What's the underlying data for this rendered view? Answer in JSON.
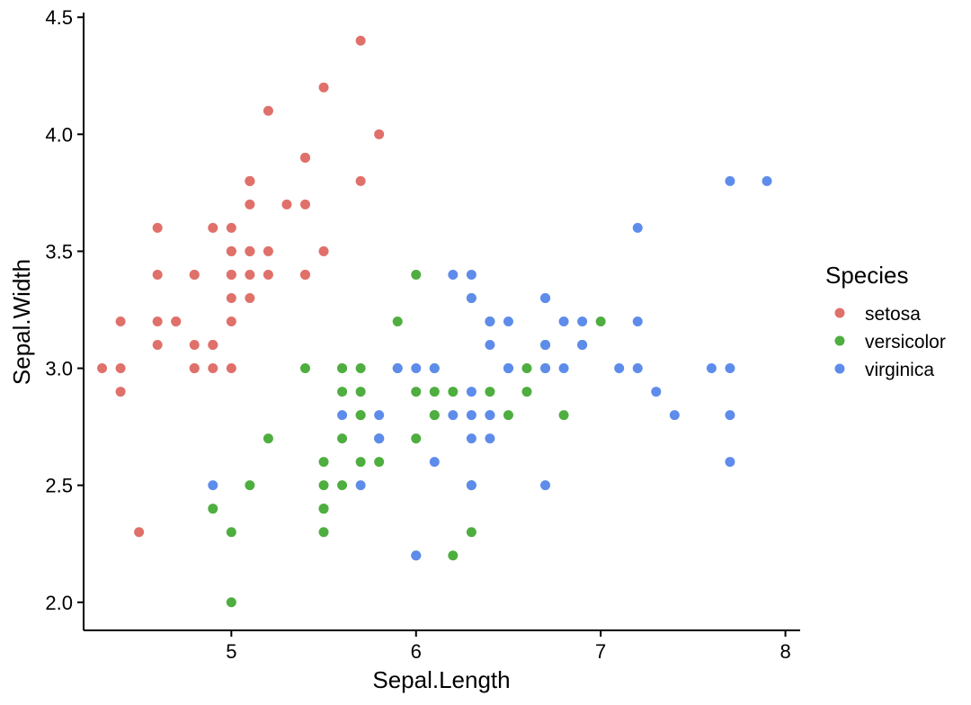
{
  "chart_data": {
    "type": "scatter",
    "xlabel": "Sepal.Length",
    "ylabel": "Sepal.Width",
    "xlim": [
      4.2,
      8.08
    ],
    "ylim": [
      1.88,
      4.52
    ],
    "xticks": [
      5,
      6,
      7,
      8
    ],
    "yticks": [
      2.0,
      2.5,
      3.0,
      3.5,
      4.0,
      4.5
    ],
    "xtick_labels": [
      "5",
      "6",
      "7",
      "8"
    ],
    "ytick_labels": [
      "2.0",
      "2.5",
      "3.0",
      "3.5",
      "4.0",
      "4.5"
    ],
    "grid": false,
    "legend": {
      "title": "Species",
      "placement": "right"
    },
    "series": [
      {
        "name": "setosa",
        "color": "#E0706A",
        "points": [
          [
            5.1,
            3.5
          ],
          [
            4.9,
            3.0
          ],
          [
            4.7,
            3.2
          ],
          [
            4.6,
            3.1
          ],
          [
            5.0,
            3.6
          ],
          [
            5.4,
            3.9
          ],
          [
            4.6,
            3.4
          ],
          [
            5.0,
            3.4
          ],
          [
            4.4,
            2.9
          ],
          [
            4.9,
            3.1
          ],
          [
            5.4,
            3.7
          ],
          [
            4.8,
            3.4
          ],
          [
            4.8,
            3.0
          ],
          [
            4.3,
            3.0
          ],
          [
            5.8,
            4.0
          ],
          [
            5.7,
            4.4
          ],
          [
            5.4,
            3.9
          ],
          [
            5.1,
            3.5
          ],
          [
            5.7,
            3.8
          ],
          [
            5.1,
            3.8
          ],
          [
            5.4,
            3.4
          ],
          [
            5.1,
            3.7
          ],
          [
            4.6,
            3.6
          ],
          [
            5.1,
            3.3
          ],
          [
            4.8,
            3.4
          ],
          [
            5.0,
            3.0
          ],
          [
            5.0,
            3.4
          ],
          [
            5.2,
            3.5
          ],
          [
            5.2,
            3.4
          ],
          [
            4.7,
            3.2
          ],
          [
            4.8,
            3.1
          ],
          [
            5.4,
            3.4
          ],
          [
            5.2,
            4.1
          ],
          [
            5.5,
            4.2
          ],
          [
            4.9,
            3.1
          ],
          [
            5.0,
            3.2
          ],
          [
            5.5,
            3.5
          ],
          [
            4.9,
            3.6
          ],
          [
            4.4,
            3.0
          ],
          [
            5.1,
            3.4
          ],
          [
            5.0,
            3.5
          ],
          [
            4.5,
            2.3
          ],
          [
            4.4,
            3.2
          ],
          [
            5.0,
            3.5
          ],
          [
            5.1,
            3.8
          ],
          [
            4.8,
            3.0
          ],
          [
            5.1,
            3.8
          ],
          [
            4.6,
            3.2
          ],
          [
            5.3,
            3.7
          ],
          [
            5.0,
            3.3
          ]
        ]
      },
      {
        "name": "versicolor",
        "color": "#4EAE3F",
        "points": [
          [
            7.0,
            3.2
          ],
          [
            6.4,
            3.2
          ],
          [
            6.9,
            3.1
          ],
          [
            5.5,
            2.3
          ],
          [
            6.5,
            2.8
          ],
          [
            5.7,
            2.8
          ],
          [
            6.3,
            3.3
          ],
          [
            4.9,
            2.4
          ],
          [
            6.6,
            2.9
          ],
          [
            5.2,
            2.7
          ],
          [
            5.0,
            2.0
          ],
          [
            5.9,
            3.0
          ],
          [
            6.0,
            2.2
          ],
          [
            6.1,
            2.9
          ],
          [
            5.6,
            2.9
          ],
          [
            6.7,
            3.1
          ],
          [
            5.6,
            3.0
          ],
          [
            5.8,
            2.7
          ],
          [
            6.2,
            2.2
          ],
          [
            5.6,
            2.5
          ],
          [
            5.9,
            3.2
          ],
          [
            6.1,
            2.8
          ],
          [
            6.3,
            2.5
          ],
          [
            6.1,
            2.8
          ],
          [
            6.4,
            2.9
          ],
          [
            6.6,
            3.0
          ],
          [
            6.8,
            2.8
          ],
          [
            6.7,
            3.0
          ],
          [
            6.0,
            2.9
          ],
          [
            5.7,
            2.6
          ],
          [
            5.5,
            2.4
          ],
          [
            5.5,
            2.4
          ],
          [
            5.8,
            2.7
          ],
          [
            6.0,
            2.7
          ],
          [
            5.4,
            3.0
          ],
          [
            6.0,
            3.4
          ],
          [
            6.7,
            3.1
          ],
          [
            6.3,
            2.3
          ],
          [
            5.6,
            3.0
          ],
          [
            5.5,
            2.5
          ],
          [
            5.5,
            2.6
          ],
          [
            6.1,
            3.0
          ],
          [
            5.8,
            2.6
          ],
          [
            5.0,
            2.3
          ],
          [
            5.6,
            2.7
          ],
          [
            5.7,
            3.0
          ],
          [
            5.7,
            2.9
          ],
          [
            6.2,
            2.9
          ],
          [
            5.1,
            2.5
          ],
          [
            5.7,
            2.8
          ]
        ]
      },
      {
        "name": "virginica",
        "color": "#5E8CEB",
        "points": [
          [
            6.3,
            3.3
          ],
          [
            5.8,
            2.7
          ],
          [
            7.1,
            3.0
          ],
          [
            6.3,
            2.9
          ],
          [
            6.5,
            3.0
          ],
          [
            7.6,
            3.0
          ],
          [
            4.9,
            2.5
          ],
          [
            7.3,
            2.9
          ],
          [
            6.7,
            2.5
          ],
          [
            7.2,
            3.6
          ],
          [
            6.5,
            3.2
          ],
          [
            6.4,
            2.7
          ],
          [
            6.8,
            3.0
          ],
          [
            5.7,
            2.5
          ],
          [
            5.8,
            2.8
          ],
          [
            6.4,
            3.2
          ],
          [
            6.5,
            3.0
          ],
          [
            7.7,
            3.8
          ],
          [
            7.7,
            2.6
          ],
          [
            6.0,
            2.2
          ],
          [
            6.9,
            3.2
          ],
          [
            5.6,
            2.8
          ],
          [
            7.7,
            2.8
          ],
          [
            6.3,
            2.7
          ],
          [
            6.7,
            3.3
          ],
          [
            7.2,
            3.2
          ],
          [
            6.2,
            2.8
          ],
          [
            6.1,
            3.0
          ],
          [
            6.4,
            2.8
          ],
          [
            7.2,
            3.0
          ],
          [
            7.4,
            2.8
          ],
          [
            7.9,
            3.8
          ],
          [
            6.4,
            2.8
          ],
          [
            6.3,
            2.8
          ],
          [
            6.1,
            2.6
          ],
          [
            7.7,
            3.0
          ],
          [
            6.3,
            3.4
          ],
          [
            6.4,
            3.1
          ],
          [
            6.0,
            3.0
          ],
          [
            6.9,
            3.1
          ],
          [
            6.7,
            3.1
          ],
          [
            6.9,
            3.1
          ],
          [
            5.8,
            2.7
          ],
          [
            6.8,
            3.2
          ],
          [
            6.7,
            3.3
          ],
          [
            6.7,
            3.0
          ],
          [
            6.3,
            2.5
          ],
          [
            6.5,
            3.0
          ],
          [
            6.2,
            3.4
          ],
          [
            5.9,
            3.0
          ]
        ]
      }
    ]
  }
}
